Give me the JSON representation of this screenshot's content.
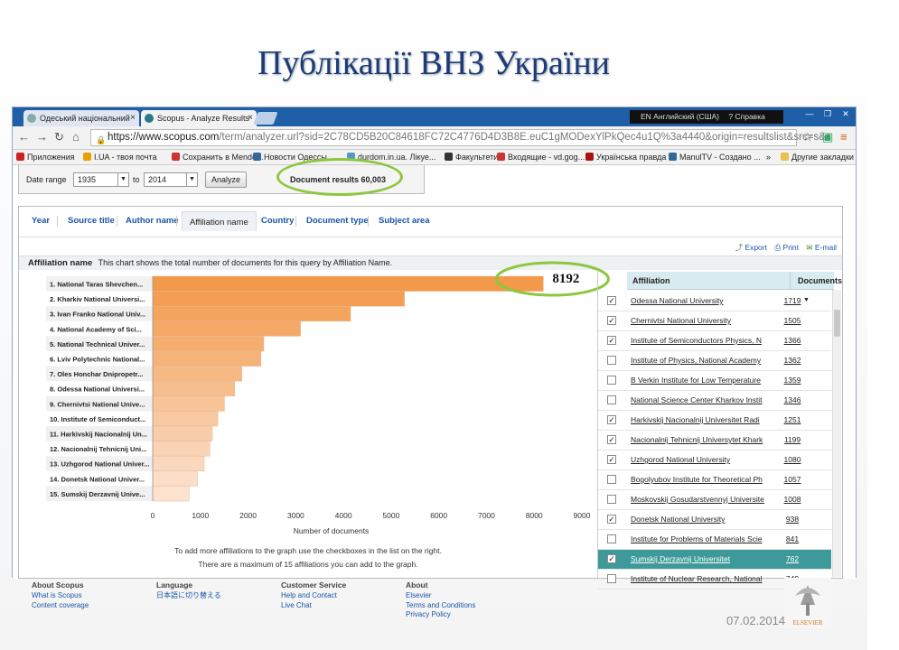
{
  "slide": {
    "title": "Публікації ВНЗ України",
    "date": "07.02.2014",
    "annotation_value": "8192"
  },
  "browser": {
    "tabs": [
      {
        "label": "Одеський національний",
        "close": "×"
      },
      {
        "label": "Scopus - Analyze Results",
        "close": "×"
      }
    ],
    "language_indicator": "EN Английский (США)",
    "help_label": "Справка",
    "url_host": "https://www.scopus.com",
    "url_rest": "/term/analyzer.url?sid=2C78CD5B20C84618FC72C4776D4D3B8E.euC1gMODexYlPkQec4u1Q%3a4440&origin=resultslist&src=s&s",
    "bookmarks": [
      "Приложения",
      "I.UA - твоя почта",
      "Сохранить в Mende...",
      "Новости Одессы",
      "durdom.in.ua. Лікуе...",
      "Факультети",
      "Входящие - vd.gog...",
      "Українська правда",
      "ManulTV - Создано ...",
      "»",
      "Другие закладки"
    ]
  },
  "range": {
    "label": "Date range",
    "from": "1935",
    "to_label": "to",
    "to": "2014",
    "analyze_button": "Analyze",
    "document_results": "Document results 60,003"
  },
  "analysis_tabs": [
    {
      "label": "Year"
    },
    {
      "label": "Source title"
    },
    {
      "label": "Author name"
    },
    {
      "label": "Affiliation name",
      "active": true
    },
    {
      "label": "Country"
    },
    {
      "label": "Document type"
    },
    {
      "label": "Subject area"
    }
  ],
  "actions": {
    "export": "Export",
    "print": "Print",
    "email": "E-mail"
  },
  "subhead": {
    "title": "Affiliation name",
    "description": "This chart shows the total number of documents for this query by Affiliation Name."
  },
  "chart_data": {
    "type": "bar",
    "orientation": "horizontal",
    "categories": [
      "1. National Taras Shevchen...",
      "2. Kharkiv National Universi...",
      "3. Ivan Franko National Univ...",
      "4. National Academy of Sci...",
      "5. National Technical Univer...",
      "6. Lviv Polytechnic National...",
      "7. Oles Honchar Dnipropetr...",
      "8. Odessa National Universi...",
      "9. Chernivtsi National Unive...",
      "10. Institute of Semiconduct...",
      "11. Harkivskij Nacionalnij Un...",
      "12. Nacionalnij Tehnicnij Uni...",
      "13. Uzhgorod National Univer...",
      "14. Donetsk National Univer...",
      "15. Sumskij Derzavnij Unive..."
    ],
    "values": [
      8192,
      5280,
      4150,
      3100,
      2330,
      2270,
      1870,
      1719,
      1505,
      1366,
      1251,
      1199,
      1080,
      938,
      762
    ],
    "xlabel": "Number of documents",
    "xlim": [
      0,
      9000
    ],
    "xticks": [
      0,
      1000,
      2000,
      3000,
      4000,
      5000,
      6000,
      7000,
      8000,
      9000
    ],
    "colors": {
      "top": "#f2994a",
      "bottom": "#fbe3d0"
    },
    "note_line1": "To add more affiliations to the graph use the checkboxes in the list on the right.",
    "note_line2": "There are a maximum of 15 affiliations you can add to the graph."
  },
  "affiliation_list": {
    "header_name": "Affiliation",
    "header_docs": "Documents",
    "sort_glyph": "▼",
    "rows": [
      {
        "name": "Odessa National University",
        "docs": "1719",
        "checked": true
      },
      {
        "name": "Chernivtsi National University",
        "docs": "1505",
        "checked": true
      },
      {
        "name": "Institute of Semiconductors Physics, N",
        "docs": "1366",
        "checked": true
      },
      {
        "name": "Institute of Physics, National Academy",
        "docs": "1362",
        "checked": false
      },
      {
        "name": "B Verkin Institute for Low Temperature",
        "docs": "1359",
        "checked": false
      },
      {
        "name": "National Science Center Kharkov Instit",
        "docs": "1346",
        "checked": false
      },
      {
        "name": "Harkivskij Nacionalnij Universitet Radi",
        "docs": "1251",
        "checked": true
      },
      {
        "name": "Nacionalnij Tehnicnij Universytet Khark",
        "docs": "1199",
        "checked": true
      },
      {
        "name": "Uzhgorod National University",
        "docs": "1080",
        "checked": true
      },
      {
        "name": "Bogolyubov Institute for Theoretical Ph",
        "docs": "1057",
        "checked": false
      },
      {
        "name": "Moskovskij Gosudarstvennyj Universite",
        "docs": "1008",
        "checked": false
      },
      {
        "name": "Donetsk National University",
        "docs": "938",
        "checked": true
      },
      {
        "name": "Institute for Problems of Materials Scie",
        "docs": "841",
        "checked": false
      },
      {
        "name": "Sumskij Derzavnij Universitet",
        "docs": "762",
        "checked": true,
        "highlighted": true
      },
      {
        "name": "Institute of Nuclear Research, National",
        "docs": "749",
        "checked": false
      }
    ]
  },
  "footer": [
    {
      "heading": "About Scopus",
      "links": [
        "What is Scopus",
        "Content coverage"
      ]
    },
    {
      "heading": "Language",
      "links": [
        "日本語に切り替える"
      ]
    },
    {
      "heading": "Customer Service",
      "links": [
        "Help and Contact",
        "Live Chat"
      ]
    },
    {
      "heading": "About",
      "links": [
        "Elsevier",
        "Terms and Conditions",
        "Privacy Policy"
      ]
    }
  ],
  "logo": {
    "text": "ELSEVIER"
  }
}
